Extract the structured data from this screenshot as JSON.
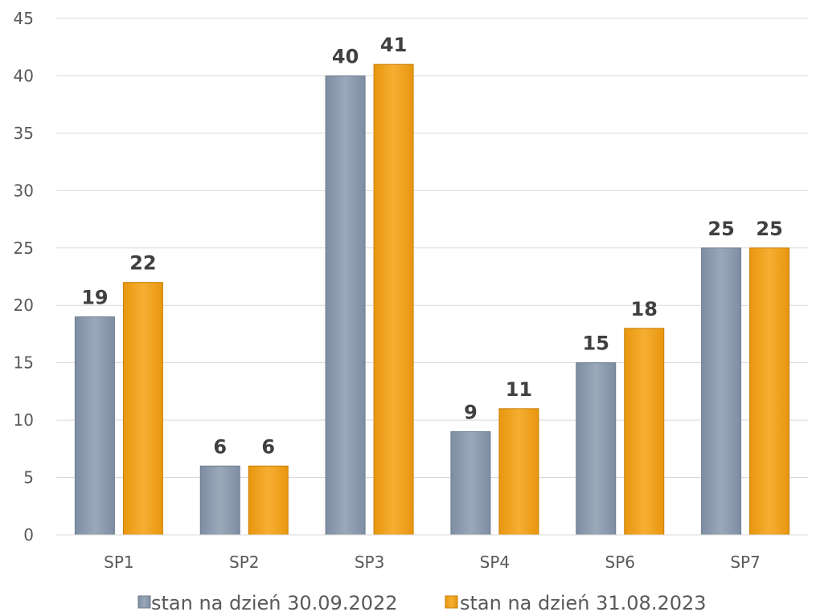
{
  "chart_data": {
    "type": "bar",
    "categories": [
      "SP1",
      "SP2",
      "SP3",
      "SP4",
      "SP6",
      "SP7"
    ],
    "series": [
      {
        "name": "stan na dzień 30.09.2022",
        "values": [
          19,
          6,
          40,
          9,
          15,
          25
        ],
        "color": "#8C9BAE"
      },
      {
        "name": "stan na dzień 31.08.2023",
        "values": [
          22,
          6,
          41,
          11,
          18,
          25
        ],
        "color": "#F0A020"
      }
    ],
    "yticks": [
      "0",
      "5",
      "10",
      "15",
      "20",
      "25",
      "30",
      "35",
      "40",
      "45"
    ],
    "ylim": [
      0,
      45
    ],
    "grid": true,
    "legend_position": "bottom"
  }
}
